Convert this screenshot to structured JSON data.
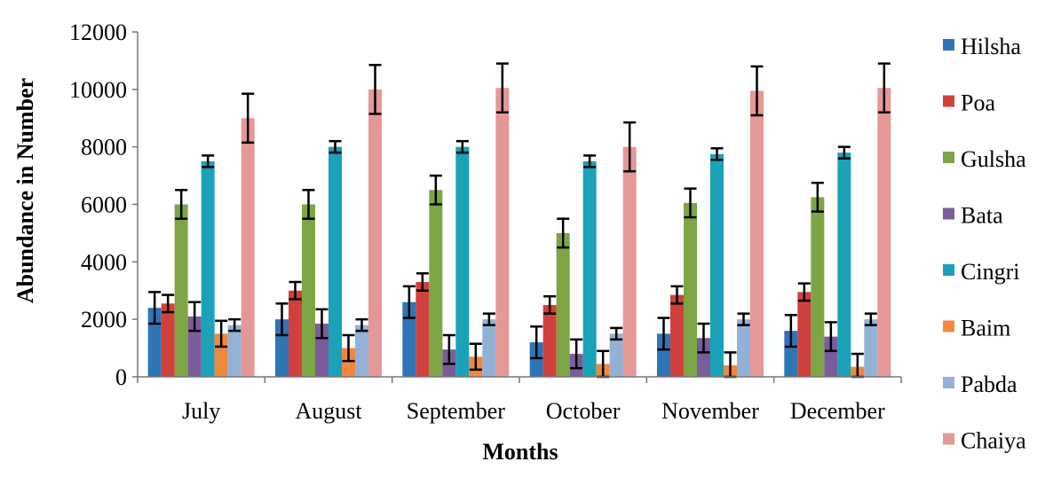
{
  "chart_data": {
    "type": "bar",
    "title": "",
    "xlabel": "Months",
    "ylabel": "Abundance in Number",
    "ylim": [
      0,
      12000
    ],
    "yticks": [
      0,
      2000,
      4000,
      6000,
      8000,
      10000,
      12000
    ],
    "categories": [
      "July",
      "August",
      "September",
      "October",
      "November",
      "December"
    ],
    "grid": false,
    "legend_position": "right",
    "series": [
      {
        "name": "Hilsha",
        "color": "#2E75B6",
        "values": [
          2400,
          2000,
          2600,
          1200,
          1500,
          1600
        ],
        "errors": [
          550,
          550,
          550,
          550,
          550,
          550
        ]
      },
      {
        "name": "Poa",
        "color": "#D0413D",
        "values": [
          2550,
          3000,
          3300,
          2500,
          2850,
          2950
        ],
        "errors": [
          300,
          300,
          300,
          300,
          300,
          300
        ]
      },
      {
        "name": "Gulsha",
        "color": "#7DA545",
        "values": [
          6000,
          6000,
          6500,
          5000,
          6050,
          6250
        ],
        "errors": [
          500,
          500,
          500,
          500,
          500,
          500
        ]
      },
      {
        "name": "Bata",
        "color": "#7B5C9B",
        "values": [
          2100,
          1850,
          950,
          800,
          1350,
          1400
        ],
        "errors": [
          500,
          500,
          500,
          500,
          500,
          500
        ]
      },
      {
        "name": "Cingri",
        "color": "#1BA1B8",
        "values": [
          7500,
          8000,
          8000,
          7500,
          7750,
          7800
        ],
        "errors": [
          200,
          200,
          200,
          200,
          200,
          200
        ]
      },
      {
        "name": "Baim",
        "color": "#F0893D",
        "values": [
          1500,
          1000,
          700,
          450,
          400,
          350
        ],
        "errors": [
          450,
          450,
          450,
          450,
          450,
          450
        ]
      },
      {
        "name": "Pabda",
        "color": "#93B1D7",
        "values": [
          1800,
          1800,
          2000,
          1500,
          2000,
          2000
        ],
        "errors": [
          200,
          200,
          200,
          200,
          200,
          200
        ]
      },
      {
        "name": "Chaiya",
        "color": "#E59898",
        "values": [
          9000,
          10000,
          10050,
          8000,
          9950,
          10050
        ],
        "errors": [
          850,
          850,
          850,
          850,
          850,
          850
        ]
      }
    ]
  }
}
